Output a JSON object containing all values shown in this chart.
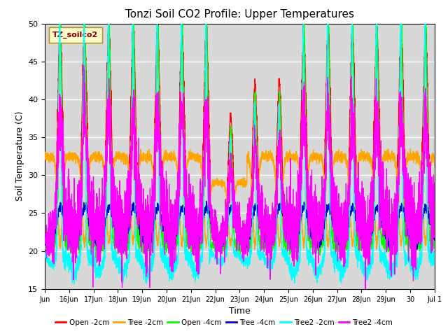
{
  "title": "Tonzi Soil CO2 Profile: Upper Temperatures",
  "xlabel": "Time",
  "ylabel": "Soil Temperature (C)",
  "ylim": [
    15,
    50
  ],
  "x_tick_labels": [
    "Jun",
    "16Jun",
    "17Jun",
    "18Jun",
    "19Jun",
    "20Jun",
    "21Jun",
    "22Jun",
    "23Jun",
    "24Jun",
    "25Jun",
    "26Jun",
    "27Jun",
    "28Jun",
    "29Jun",
    "30",
    "Jul 1"
  ],
  "x_tick_positions": [
    0,
    1,
    2,
    3,
    4,
    5,
    6,
    7,
    8,
    9,
    10,
    11,
    12,
    13,
    14,
    15,
    16
  ],
  "series": [
    {
      "label": "Open -2cm",
      "color": "#FF0000"
    },
    {
      "label": "Tree -2cm",
      "color": "#FFA500"
    },
    {
      "label": "Open -4cm",
      "color": "#00FF00"
    },
    {
      "label": "Tree -4cm",
      "color": "#0000CC"
    },
    {
      "label": "Tree2 -2cm",
      "color": "#00FFFF"
    },
    {
      "label": "Tree2 -4cm",
      "color": "#FF00FF"
    }
  ],
  "legend_title": "TZ_soilco2",
  "background_color": "#FFFFFF",
  "plot_bg_color": "#D8D8D8",
  "grid_color": "#FFFFFF",
  "title_fontsize": 11,
  "axis_fontsize": 9,
  "yticks": [
    15,
    20,
    25,
    30,
    35,
    40,
    45,
    50
  ],
  "ytick_grids": [
    20,
    25,
    30,
    35,
    40,
    45
  ]
}
